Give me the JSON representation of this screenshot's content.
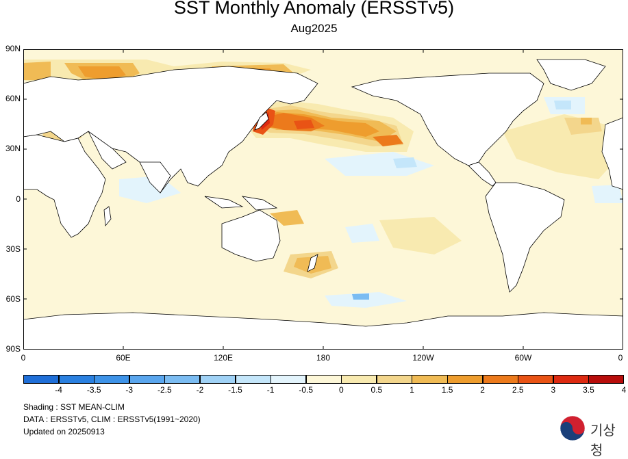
{
  "title": "SST Monthly Anomaly (ERSSTv5)",
  "subtitle": "Aug2025",
  "y_axis_labels": [
    "90N",
    "60N",
    "30N",
    "0",
    "30S",
    "60S",
    "90S"
  ],
  "x_axis_labels": [
    "0",
    "60E",
    "120E",
    "180",
    "120W",
    "60W",
    "0"
  ],
  "colorbar": {
    "labels": [
      "-4",
      "-3.5",
      "-3",
      "-2.5",
      "-2",
      "-1.5",
      "-1",
      "-0.5",
      "0",
      "0.5",
      "1",
      "1.5",
      "2",
      "2.5",
      "3",
      "3.5",
      "4"
    ],
    "colors": [
      "#1f6fd8",
      "#2a80e0",
      "#3e93e8",
      "#5aa6ee",
      "#7bbcf2",
      "#a0d2f6",
      "#c4e6fa",
      "#e3f4fc",
      "#fdf7d8",
      "#f8eab0",
      "#f3d68c",
      "#f0bb55",
      "#ee9d2e",
      "#ec7a1c",
      "#e95315",
      "#dd2a11",
      "#b80d0b"
    ]
  },
  "footer": {
    "shading": "Shading : SST MEAN-CLIM",
    "data": "DATA : ERSSTv5, CLIM : ERSSTv5(1991~2020)",
    "updated": "Updated on 20250913"
  },
  "logo_text": "기상청"
}
